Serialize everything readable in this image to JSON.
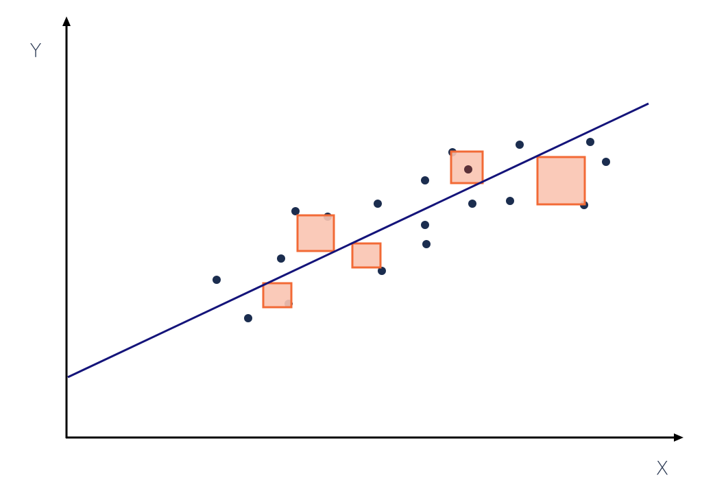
{
  "axes": {
    "y_label": "Y",
    "x_label": "X"
  }
}
